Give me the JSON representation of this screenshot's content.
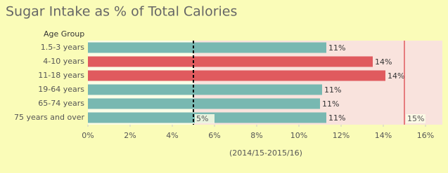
{
  "chart_data": {
    "type": "hbar",
    "title": "Sugar Intake as % of Total Calories",
    "row_header": "Age Group",
    "xlabel": "(2014/15-2015/16)",
    "categories": [
      "1.5-3 years",
      "4-10 years",
      "11-18 years",
      "19-64 years",
      "65-74 years",
      "75 years and over"
    ],
    "values": [
      11.3,
      13.5,
      14.1,
      11.1,
      11.0,
      11.3
    ],
    "value_labels": [
      "11%",
      "14%",
      "14%",
      "11%",
      "11%",
      "11%"
    ],
    "colors": [
      "#78b8b1",
      "#e05a5e",
      "#e05a5e",
      "#78b8b1",
      "#78b8b1",
      "#78b8b1"
    ],
    "xlim": [
      0,
      16.8
    ],
    "xticks": [
      {
        "value": 0,
        "label": "0%"
      },
      {
        "value": 2,
        "label": "2%"
      },
      {
        "value": 4,
        "label": "4%"
      },
      {
        "value": 6,
        "label": "6%"
      },
      {
        "value": 8,
        "label": "8%"
      },
      {
        "value": 10,
        "label": "10%"
      },
      {
        "value": 12,
        "label": "12%"
      },
      {
        "value": 14,
        "label": "14%"
      },
      {
        "value": 16,
        "label": "16%"
      }
    ],
    "reference_lines": [
      {
        "value": 5,
        "label": "5%",
        "color": "#000000",
        "dashed": true,
        "shade_right": "#f9e3dd"
      },
      {
        "value": 15,
        "label": "15%",
        "color": "#e05a5e",
        "dashed": false
      }
    ]
  }
}
